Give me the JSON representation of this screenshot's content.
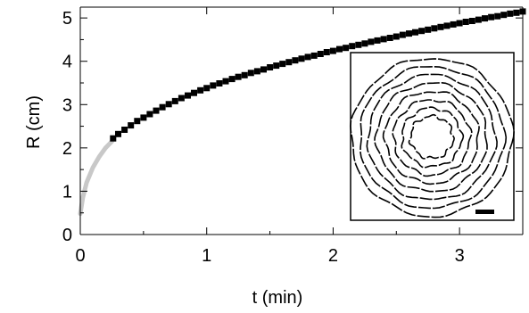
{
  "chart_data": {
    "type": "scatter",
    "xlabel": "t (min)",
    "ylabel": "R (cm)",
    "xlim": [
      0,
      3.5
    ],
    "ylim": [
      0,
      5.25
    ],
    "xticks": [
      0,
      1,
      2,
      3
    ],
    "yticks": [
      0,
      1,
      2,
      3,
      4,
      5
    ],
    "grid": false,
    "fit_curve": {
      "color": "#c8c8c8",
      "points": [
        [
          0.0,
          0.48
        ],
        [
          0.02,
          0.85
        ],
        [
          0.05,
          1.2
        ],
        [
          0.1,
          1.55
        ],
        [
          0.15,
          1.8
        ],
        [
          0.2,
          2.0
        ],
        [
          0.25,
          2.15
        ]
      ]
    },
    "series": [
      {
        "color": "#000000",
        "x": [
          0.26,
          0.3,
          0.35,
          0.4,
          0.45,
          0.5,
          0.55,
          0.6,
          0.65,
          0.7,
          0.75,
          0.8,
          0.85,
          0.9,
          0.95,
          1.0,
          1.05,
          1.1,
          1.15,
          1.2,
          1.25,
          1.3,
          1.35,
          1.4,
          1.45,
          1.5,
          1.55,
          1.6,
          1.65,
          1.7,
          1.75,
          1.8,
          1.85,
          1.9,
          1.95,
          2.0,
          2.05,
          2.1,
          2.15,
          2.2,
          2.25,
          2.3,
          2.35,
          2.4,
          2.45,
          2.5,
          2.55,
          2.6,
          2.65,
          2.7,
          2.75,
          2.8,
          2.85,
          2.9,
          2.95,
          3.0,
          3.05,
          3.1,
          3.15,
          3.2,
          3.25,
          3.3,
          3.35,
          3.4,
          3.45,
          3.5
        ],
        "y": [
          2.22,
          2.32,
          2.42,
          2.52,
          2.62,
          2.7,
          2.78,
          2.86,
          2.94,
          3.01,
          3.08,
          3.15,
          3.21,
          3.27,
          3.33,
          3.38,
          3.44,
          3.49,
          3.54,
          3.59,
          3.64,
          3.68,
          3.73,
          3.77,
          3.81,
          3.86,
          3.9,
          3.94,
          3.98,
          4.02,
          4.06,
          4.1,
          4.13,
          4.17,
          4.21,
          4.24,
          4.28,
          4.31,
          4.35,
          4.38,
          4.41,
          4.45,
          4.48,
          4.51,
          4.54,
          4.57,
          4.61,
          4.64,
          4.67,
          4.7,
          4.73,
          4.76,
          4.79,
          4.82,
          4.85,
          4.88,
          4.91,
          4.93,
          4.96,
          4.99,
          5.02,
          5.04,
          5.07,
          5.1,
          5.12,
          5.15
        ]
      }
    ],
    "inset": {
      "type": "image",
      "description_name": "concentric-rings-pattern",
      "ring_count": 8
    }
  }
}
